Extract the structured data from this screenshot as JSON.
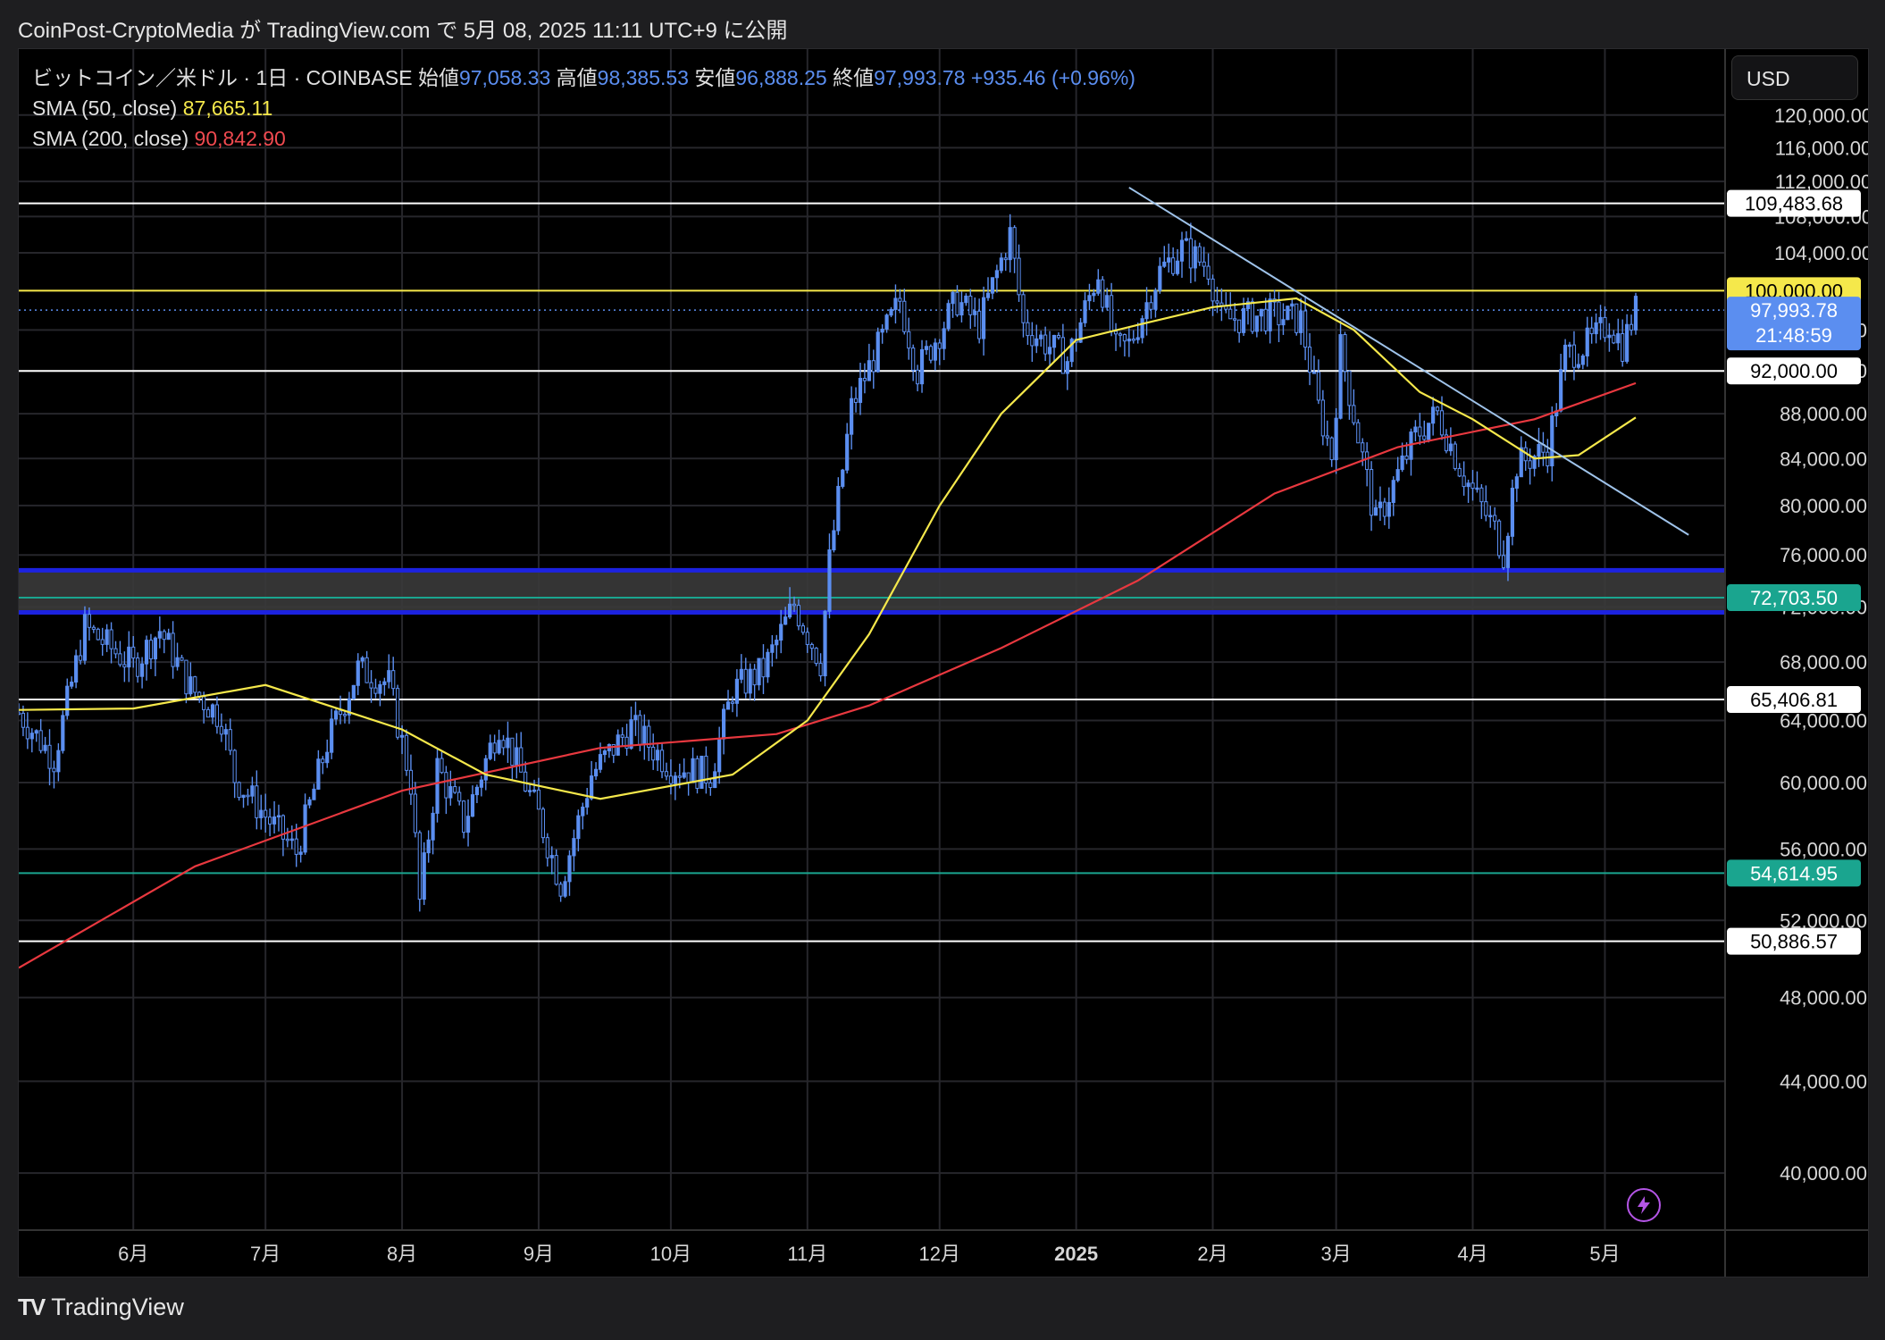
{
  "header": {
    "author": "CoinPost-CryptoMedia",
    "ga": "が",
    "site": "TradingView.com",
    "de": "で",
    "datetime": "5月 08, 2025 11:11 UTC+9",
    "published": "に公開"
  },
  "legend": {
    "symbol": "ビットコイン／米ドル · 1日 · COINBASE",
    "open_label": "始値",
    "open": "97,058.33",
    "high_label": "高値",
    "high": "98,385.53",
    "low_label": "安値",
    "low": "96,888.25",
    "close_label": "終値",
    "close": "97,993.78",
    "change": "+935.46 (+0.96%)",
    "sma50_label": "SMA (50, close)",
    "sma50_value": "87,665.11",
    "sma200_label": "SMA (200, close)",
    "sma200_value": "90,842.90"
  },
  "currency_button": "USD",
  "footer": {
    "logo": "TV",
    "brand": "TradingView"
  },
  "icons": {
    "replay": "lightning-icon"
  },
  "colors": {
    "background": "#000000",
    "candle": "#5b8ef0",
    "sma50": "#f5e84b",
    "sma200": "#e8383f",
    "level_white": "#ffffff",
    "level_yellow": "#f5e84b",
    "level_teal": "#1aa58f",
    "zone_border": "#1c22e0",
    "zone_fill": "#3a3a3a",
    "trendline": "#9fc3ea"
  },
  "chart_data": {
    "type": "candlestick",
    "y_scale": "log",
    "ylim": [
      37700,
      128500
    ],
    "x_tick_labels": [
      "6月",
      "7月",
      "8月",
      "9月",
      "10月",
      "11月",
      "12月",
      "2025",
      "2月",
      "3月",
      "4月",
      "5月"
    ],
    "y_tick_labels": [
      40000,
      44000,
      48000,
      52000,
      56000,
      60000,
      64000,
      68000,
      72000,
      76000,
      80000,
      84000,
      88000,
      92000,
      96000,
      104000,
      108000,
      112000,
      116000,
      120000
    ],
    "y_tick_texts": [
      "40,000.00",
      "44,000.00",
      "48,000.00",
      "52,000.00",
      "56,000.00",
      "60,000.00",
      "64,000.00",
      "68,000.00",
      "72,000.00",
      "76,000.00",
      "80,000.00",
      "84,000.00",
      "88,000.00",
      "92,000.00",
      "96,000.00",
      "104,000.00",
      "108,000.00",
      "112,000.00",
      "116,000.00",
      "120,000.00"
    ],
    "last_price": 97993.78,
    "last_price_text": "97,993.78",
    "countdown": "21:48:59",
    "levels": [
      {
        "value": 109483.68,
        "text": "109,483.68",
        "color": "#ffffff"
      },
      {
        "value": 100000,
        "text": "100,000.00",
        "color": "#f5e84b"
      },
      {
        "value": 92000,
        "text": "92,000.00",
        "color": "#ffffff"
      },
      {
        "value": 72703.5,
        "text": "72,703.50",
        "color": "#1aa58f"
      },
      {
        "value": 65406.81,
        "text": "65,406.81",
        "color": "#ffffff"
      },
      {
        "value": 54614.95,
        "text": "54,614.95",
        "color": "#1aa58f"
      },
      {
        "value": 50886.57,
        "text": "50,886.57",
        "color": "#ffffff"
      }
    ],
    "zone": {
      "top": 74800,
      "bottom": 71600
    },
    "trendline": {
      "from": {
        "date": "2025-01-13",
        "value": 111300
      },
      "to": {
        "date": "2025-05-20",
        "value": 77600
      }
    },
    "price_series": [
      {
        "date": "2024-05-06",
        "close": 64500
      },
      {
        "date": "2024-05-14",
        "close": 61500
      },
      {
        "date": "2024-05-21",
        "close": 70500
      },
      {
        "date": "2024-06-01",
        "close": 67700
      },
      {
        "date": "2024-06-07",
        "close": 70300
      },
      {
        "date": "2024-06-14",
        "close": 66200
      },
      {
        "date": "2024-06-21",
        "close": 64200
      },
      {
        "date": "2024-06-24",
        "close": 60300
      },
      {
        "date": "2024-07-04",
        "close": 57000
      },
      {
        "date": "2024-07-08",
        "close": 55800
      },
      {
        "date": "2024-07-15",
        "close": 62500
      },
      {
        "date": "2024-07-22",
        "close": 67500
      },
      {
        "date": "2024-07-29",
        "close": 66500
      },
      {
        "date": "2024-08-03",
        "close": 60000
      },
      {
        "date": "2024-08-05",
        "close": 53000
      },
      {
        "date": "2024-08-09",
        "close": 61000
      },
      {
        "date": "2024-08-15",
        "close": 57500
      },
      {
        "date": "2024-08-23",
        "close": 63800
      },
      {
        "date": "2024-09-01",
        "close": 58000
      },
      {
        "date": "2024-09-06",
        "close": 54000
      },
      {
        "date": "2024-09-13",
        "close": 60500
      },
      {
        "date": "2024-09-22",
        "close": 63600
      },
      {
        "date": "2024-10-01",
        "close": 61000
      },
      {
        "date": "2024-10-10",
        "close": 60500
      },
      {
        "date": "2024-10-15",
        "close": 66000
      },
      {
        "date": "2024-10-22",
        "close": 67400
      },
      {
        "date": "2024-10-29",
        "close": 72200
      },
      {
        "date": "2024-11-04",
        "close": 68000
      },
      {
        "date": "2024-11-06",
        "close": 75500
      },
      {
        "date": "2024-11-11",
        "close": 88500
      },
      {
        "date": "2024-11-13",
        "close": 90500
      },
      {
        "date": "2024-11-22",
        "close": 99000
      },
      {
        "date": "2024-11-26",
        "close": 92000
      },
      {
        "date": "2024-12-05",
        "close": 99000
      },
      {
        "date": "2024-12-10",
        "close": 96500
      },
      {
        "date": "2024-12-17",
        "close": 106000
      },
      {
        "date": "2024-12-20",
        "close": 96500
      },
      {
        "date": "2024-12-30",
        "close": 93000
      },
      {
        "date": "2025-01-06",
        "close": 102000
      },
      {
        "date": "2025-01-10",
        "close": 94000
      },
      {
        "date": "2025-01-13",
        "close": 94500
      },
      {
        "date": "2025-01-20",
        "close": 102000
      },
      {
        "date": "2025-01-25",
        "close": 104500
      },
      {
        "date": "2025-01-31",
        "close": 102500
      },
      {
        "date": "2025-02-03",
        "close": 97000
      },
      {
        "date": "2025-02-14",
        "close": 97500
      },
      {
        "date": "2025-02-21",
        "close": 97000
      },
      {
        "date": "2025-02-25",
        "close": 88500
      },
      {
        "date": "2025-02-28",
        "close": 84300
      },
      {
        "date": "2025-03-02",
        "close": 94200
      },
      {
        "date": "2025-03-10",
        "close": 78500
      },
      {
        "date": "2025-03-19",
        "close": 86000
      },
      {
        "date": "2025-03-24",
        "close": 88000
      },
      {
        "date": "2025-03-30",
        "close": 82500
      },
      {
        "date": "2025-04-06",
        "close": 78000
      },
      {
        "date": "2025-04-08",
        "close": 76200
      },
      {
        "date": "2025-04-11",
        "close": 83500
      },
      {
        "date": "2025-04-18",
        "close": 84800
      },
      {
        "date": "2025-04-22",
        "close": 93500
      },
      {
        "date": "2025-04-28",
        "close": 94800
      },
      {
        "date": "2025-05-02",
        "close": 96800
      },
      {
        "date": "2025-05-05",
        "close": 94500
      },
      {
        "date": "2025-05-08",
        "close": 97993.78
      }
    ],
    "sma50": [
      {
        "date": "2024-05-06",
        "close": 64700
      },
      {
        "date": "2024-06-01",
        "close": 64800
      },
      {
        "date": "2024-07-01",
        "close": 66400
      },
      {
        "date": "2024-08-01",
        "close": 63400
      },
      {
        "date": "2024-08-20",
        "close": 60500
      },
      {
        "date": "2024-09-15",
        "close": 59000
      },
      {
        "date": "2024-10-15",
        "close": 60500
      },
      {
        "date": "2024-11-01",
        "close": 64000
      },
      {
        "date": "2024-11-15",
        "close": 70000
      },
      {
        "date": "2024-12-01",
        "close": 80000
      },
      {
        "date": "2024-12-15",
        "close": 88000
      },
      {
        "date": "2025-01-01",
        "close": 95000
      },
      {
        "date": "2025-01-15",
        "close": 96500
      },
      {
        "date": "2025-02-01",
        "close": 98300
      },
      {
        "date": "2025-02-20",
        "close": 99200
      },
      {
        "date": "2025-03-05",
        "close": 96000
      },
      {
        "date": "2025-03-20",
        "close": 90000
      },
      {
        "date": "2025-04-01",
        "close": 87500
      },
      {
        "date": "2025-04-15",
        "close": 84000
      },
      {
        "date": "2025-04-25",
        "close": 84300
      },
      {
        "date": "2025-05-08",
        "close": 87665.11
      }
    ],
    "sma200": [
      {
        "date": "2024-05-06",
        "close": 49500
      },
      {
        "date": "2024-06-15",
        "close": 55000
      },
      {
        "date": "2024-08-01",
        "close": 59500
      },
      {
        "date": "2024-09-15",
        "close": 62200
      },
      {
        "date": "2024-10-25",
        "close": 63100
      },
      {
        "date": "2024-11-15",
        "close": 65000
      },
      {
        "date": "2024-12-15",
        "close": 69000
      },
      {
        "date": "2025-01-15",
        "close": 74000
      },
      {
        "date": "2025-02-15",
        "close": 81000
      },
      {
        "date": "2025-03-15",
        "close": 85000
      },
      {
        "date": "2025-04-15",
        "close": 87500
      },
      {
        "date": "2025-05-08",
        "close": 90842.9
      }
    ]
  }
}
